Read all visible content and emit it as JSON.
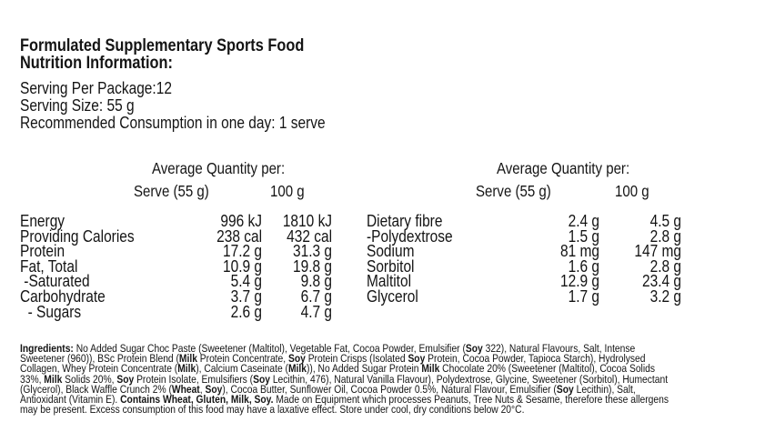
{
  "title": [
    "Formulated Supplementary Sports Food",
    "Nutrition Information:"
  ],
  "info": [
    "Serving Per Package:12",
    "Serving Size: 55 g",
    "Recommended Consumption in one day: 1 serve"
  ],
  "headers": {
    "avg": "Average Quantity per:",
    "serve": "Serve (55 g)",
    "per100": "100 g"
  },
  "left_rows": [
    {
      "label": "Energy",
      "serve": "996 kJ",
      "per100": "1810 kJ"
    },
    {
      "label": "Providing Calories",
      "serve": "238 cal",
      "per100": "432 cal"
    },
    {
      "label": "Protein",
      "serve": "17.2 g",
      "per100": "31.3 g"
    },
    {
      "label": "Fat, Total",
      "serve": "10.9 g",
      "per100": "19.8 g"
    },
    {
      "label": " -Saturated",
      "serve": "5.4 g",
      "per100": "9.8 g"
    },
    {
      "label": "Carbohydrate",
      "serve": "3.7 g",
      "per100": "6.7 g"
    },
    {
      "label": "  - Sugars",
      "serve": "2.6 g",
      "per100": "4.7 g"
    }
  ],
  "right_rows": [
    {
      "label": "Dietary fibre",
      "serve": "2.4 g",
      "per100": "4.5 g"
    },
    {
      "label": "-Polydextrose",
      "serve": "1.5 g",
      "per100": "2.8 g"
    },
    {
      "label": "Sodium",
      "serve": "81 mg",
      "per100": "147 mg"
    },
    {
      "label": "Sorbitol",
      "serve": "1.6 g",
      "per100": "2.8 g"
    },
    {
      "label": "Maltitol",
      "serve": "12.9 g",
      "per100": "23.4 g"
    },
    {
      "label": "Glycerol",
      "serve": "1.7 g",
      "per100": "3.2 g"
    }
  ],
  "ingredients_lines": [
    [
      [
        "Ingredients:",
        1
      ],
      [
        " No Added Sugar Choc Paste (Sweetener (Maltitol), Vegetable Fat, Cocoa Powder, Emulsifier (",
        0
      ],
      [
        "Soy",
        1
      ],
      [
        " 322), Natural Flavours, Salt, Intense",
        0
      ]
    ],
    [
      [
        "Sweetener (960)), BSc Protein Blend (",
        0
      ],
      [
        "Milk",
        1
      ],
      [
        " Protein Concentrate, ",
        0
      ],
      [
        "Soy",
        1
      ],
      [
        " Protein Crisps (Isolated ",
        0
      ],
      [
        "Soy",
        1
      ],
      [
        " Protein, Cocoa Powder, Tapioca Starch), Hydrolysed",
        0
      ]
    ],
    [
      [
        "Collagen, Whey Protein Concentrate (",
        0
      ],
      [
        "Milk",
        1
      ],
      [
        "), Calcium Caseinate (",
        0
      ],
      [
        "Milk",
        1
      ],
      [
        ")), No Added Sugar Protein ",
        0
      ],
      [
        "Milk",
        1
      ],
      [
        " Chocolate 20% (Sweetener (Maltitol), Cocoa Solids",
        0
      ]
    ],
    [
      [
        "33%, ",
        0
      ],
      [
        "Milk",
        1
      ],
      [
        " Solids 20%, ",
        0
      ],
      [
        "Soy",
        1
      ],
      [
        " Protein Isolate, Emulsifiers (",
        0
      ],
      [
        "Soy",
        1
      ],
      [
        " Lecithin, 476), Natural Vanilla Flavour), Polydextrose, Glycine, Sweetener (Sorbitol), Humectant",
        0
      ]
    ],
    [
      [
        "(Glycerol), Black Waffle Crunch 2% (",
        0
      ],
      [
        "Wheat",
        1
      ],
      [
        ", ",
        0
      ],
      [
        "Soy",
        1
      ],
      [
        "), Cocoa Butter, Sunflower Oil, Cocoa Powder 0.5%, Natural Flavour, Emulsifier (",
        0
      ],
      [
        "Soy",
        1
      ],
      [
        " Lecithin), Salt,",
        0
      ]
    ],
    [
      [
        "Antioxidant (Vitamin E). ",
        0
      ],
      [
        "Contains Wheat, Gluten, Milk, Soy.",
        1
      ],
      [
        " Made on Equipment which processes Peanuts, Tree Nuts & Sesame, therefore these allergens",
        0
      ]
    ],
    [
      [
        "may be present. Excess consumption of this food may have a laxative effect. Store under cool, dry conditions below 20°C.",
        0
      ]
    ]
  ]
}
